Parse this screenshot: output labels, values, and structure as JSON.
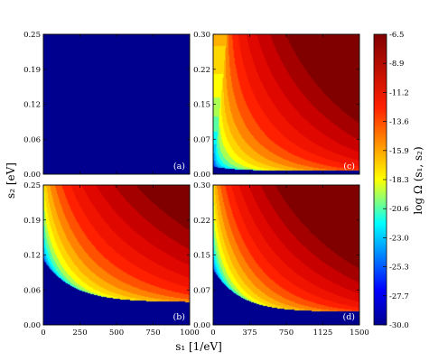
{
  "chart_data": {
    "type": "heatmap",
    "title": "",
    "xlabel": "s₁ [1/eV]",
    "ylabel": "s₂ [eV]",
    "colorbar": {
      "label": "log Ω (s₁, s₂)",
      "range": [
        -30.0,
        -6.5
      ],
      "ticks": [
        "-6.5",
        "-8.9",
        "-11.2",
        "-13.6",
        "-15.9",
        "-18.3",
        "-20.6",
        "-23.0",
        "-25.3",
        "-27.7",
        "-30.0"
      ]
    },
    "panels": [
      {
        "id": "a",
        "label": "(a)",
        "xlim": [
          0,
          1000
        ],
        "ylim": [
          0,
          0.25
        ],
        "xticks": [],
        "yticks": [
          "0.00",
          "0.06",
          "0.12",
          "0.19",
          "0.25"
        ]
      },
      {
        "id": "c",
        "label": "(c)",
        "xlim": [
          0,
          1500
        ],
        "ylim": [
          0,
          0.3
        ],
        "xticks": [],
        "yticks": [
          "0.00",
          "0.07",
          "0.15",
          "0.22",
          "0.30"
        ]
      },
      {
        "id": "b",
        "label": "(b)",
        "xlim": [
          0,
          1000
        ],
        "ylim": [
          0,
          0.25
        ],
        "xticks": [
          "0",
          "250",
          "500",
          "750",
          "1000"
        ],
        "yticks": [
          "0.00",
          "0.06",
          "0.12",
          "0.19",
          "0.25"
        ]
      },
      {
        "id": "d",
        "label": "(d)",
        "xlim": [
          0,
          1500
        ],
        "ylim": [
          0,
          0.3
        ],
        "xticks": [
          "0",
          "375",
          "750",
          "1125",
          "1500"
        ],
        "yticks": [
          "0.00",
          "0.07",
          "0.15",
          "0.22",
          "0.30"
        ]
      }
    ]
  }
}
